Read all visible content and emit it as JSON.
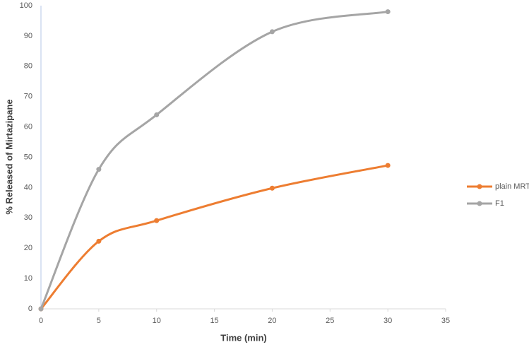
{
  "chart_data": {
    "type": "line",
    "x_label": "Time (min)",
    "y_label": "% Released of Mirtazipane",
    "x": [
      0,
      5,
      10,
      20,
      30
    ],
    "series": [
      {
        "name": "plain MRT",
        "color": "#ed7d31",
        "values": [
          0,
          22.3,
          29.1,
          39.8,
          47.3
        ]
      },
      {
        "name": "F1",
        "color": "#a5a5a5",
        "values": [
          0,
          46,
          64,
          91.4,
          98
        ]
      }
    ],
    "xlim": [
      0,
      35
    ],
    "xticks": [
      0,
      5,
      10,
      15,
      20,
      25,
      30,
      35
    ],
    "ylim": [
      0,
      100
    ],
    "yticks": [
      0,
      10,
      20,
      30,
      40,
      50,
      60,
      70,
      80,
      90,
      100
    ],
    "grid": false,
    "legend": "right",
    "smooth": true
  }
}
